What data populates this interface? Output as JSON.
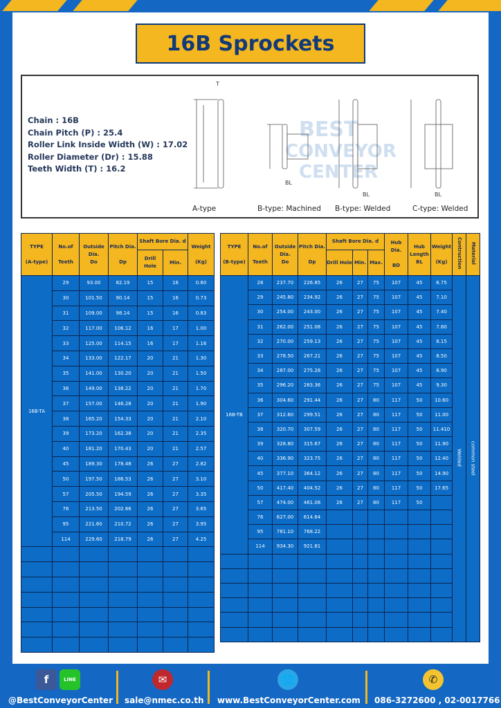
{
  "title": "16B Sprockets",
  "specs": [
    "Chain  :  16B",
    "Chain Pitch (P)  :  25.4",
    "Roller Link Inside Width (W)  :  17.02",
    "Roller Diameter (Dr)  : 15.88",
    "Teeth Width (T)  :  16.2"
  ],
  "diagram_captions": [
    "A-type",
    "B-type: Machined",
    "B-type: Welded",
    "C-type: Welded"
  ],
  "watermark": "BEST CONVEYOR CENTER",
  "colors": {
    "brand_blue": "#1467c2",
    "accent_yellow": "#f4b71f",
    "cell_blue": "#0c6cc6"
  },
  "table_a": {
    "headers": {
      "type": "TYPE",
      "type_sub": "(A-type)",
      "teeth": "No.of",
      "teeth_sub": "Teeth",
      "od": "Outside",
      "od_sub": "Dia.",
      "od_sub2": "Do",
      "pd": "Pitch Dia.",
      "pd_sub": "Dp",
      "bore": "Shaft Bore Dia. d",
      "drill": "Drill Hole",
      "min": "Min.",
      "weight": "Weight",
      "weight_sub": "(Kg)"
    },
    "type_value": "16B-TA",
    "rows": [
      [
        "29",
        "93.00",
        "82.19",
        "15",
        "16",
        "0.60"
      ],
      [
        "30",
        "101.50",
        "90.14",
        "15",
        "16",
        "0.73"
      ],
      [
        "31",
        "109.00",
        "98.14",
        "15",
        "16",
        "0.83"
      ],
      [
        "32",
        "117.00",
        "106.12",
        "16",
        "17",
        "1.00"
      ],
      [
        "33",
        "125.00",
        "114.15",
        "16",
        "17",
        "1.16"
      ],
      [
        "34",
        "133.00",
        "122.17",
        "20",
        "21",
        "1.30"
      ],
      [
        "35",
        "141.00",
        "130.20",
        "20",
        "21",
        "1.50"
      ],
      [
        "36",
        "149.00",
        "138.22",
        "20",
        "21",
        "1.70"
      ],
      [
        "37",
        "157.00",
        "146.28",
        "20",
        "21",
        "1.90"
      ],
      [
        "38",
        "165.20",
        "154.33",
        "20",
        "21",
        "2.10"
      ],
      [
        "39",
        "173.20",
        "162.38",
        "20",
        "21",
        "2.35"
      ],
      [
        "40",
        "181.20",
        "170.43",
        "20",
        "21",
        "2.57"
      ],
      [
        "45",
        "189.30",
        "178.48",
        "26",
        "27",
        "2.82"
      ],
      [
        "50",
        "197.50",
        "186.53",
        "26",
        "27",
        "3.10"
      ],
      [
        "57",
        "205.50",
        "194.59",
        "26",
        "27",
        "3.35"
      ],
      [
        "76",
        "213.50",
        "202.66",
        "26",
        "27",
        "3.65"
      ],
      [
        "95",
        "221.60",
        "210.72",
        "26",
        "27",
        "3.95"
      ],
      [
        "114",
        "229.60",
        "218.79",
        "26",
        "27",
        "4.25"
      ]
    ]
  },
  "table_b": {
    "headers": {
      "type": "TYPE",
      "type_sub": "(B-type)",
      "teeth": "No.of",
      "teeth_sub": "Teeth",
      "od": "Outside",
      "od_sub": "Dia.",
      "od_sub2": "Do",
      "pd": "Pitch Dia.",
      "pd_sub": "Dp",
      "bore": "Shaft Bore Dia. d",
      "drill": "Drill Hole",
      "min": "Min.",
      "max": "Max.",
      "hub": "Hub Dia.",
      "hub_sub": "BD",
      "hl": "Hub",
      "hl_sub": "Length",
      "hl_sub2": "BL",
      "weight": "Weight",
      "weight_sub": "(Kg)",
      "construction": "Contruction",
      "material": "Material"
    },
    "type_value": "16B-TB",
    "construction_value": "Welded",
    "material_value": "common steel",
    "rows": [
      [
        "28",
        "237.70",
        "226.85",
        "26",
        "27",
        "75",
        "107",
        "45",
        "6.75"
      ],
      [
        "29",
        "245.80",
        "234.92",
        "26",
        "27",
        "75",
        "107",
        "45",
        "7.10"
      ],
      [
        "30",
        "254.00",
        "243.00",
        "26",
        "27",
        "75",
        "107",
        "45",
        "7.40"
      ],
      [
        "31",
        "262.00",
        "251.08",
        "26",
        "27",
        "75",
        "107",
        "45",
        "7.80"
      ],
      [
        "32",
        "270.00",
        "259.13",
        "26",
        "27",
        "75",
        "107",
        "45",
        "8.15"
      ],
      [
        "33",
        "278.50",
        "267.21",
        "26",
        "27",
        "75",
        "107",
        "45",
        "8.50"
      ],
      [
        "34",
        "287.00",
        "275.28",
        "26",
        "27",
        "75",
        "107",
        "45",
        "8.90"
      ],
      [
        "35",
        "296.20",
        "283.36",
        "26",
        "27",
        "75",
        "107",
        "45",
        "9.30"
      ],
      [
        "36",
        "304.60",
        "291.44",
        "26",
        "27",
        "80",
        "117",
        "50",
        "10.60"
      ],
      [
        "37",
        "312.60",
        "299.51",
        "26",
        "27",
        "80",
        "117",
        "50",
        "11.00"
      ],
      [
        "38",
        "320.70",
        "307.59",
        "26",
        "27",
        "80",
        "117",
        "50",
        "11.410"
      ],
      [
        "39",
        "328.80",
        "315.67",
        "26",
        "27",
        "80",
        "117",
        "50",
        "11.90"
      ],
      [
        "40",
        "336.90",
        "323.75",
        "26",
        "27",
        "80",
        "117",
        "50",
        "12.40"
      ],
      [
        "45",
        "377.10",
        "364.12",
        "26",
        "27",
        "80",
        "117",
        "50",
        "14.90"
      ],
      [
        "50",
        "417.40",
        "404.52",
        "26",
        "27",
        "80",
        "117",
        "50",
        "17.65"
      ],
      [
        "57",
        "474.00",
        "461.08",
        "26",
        "27",
        "80",
        "117",
        "50",
        ""
      ],
      [
        "76",
        "627.00",
        "614.64",
        "",
        "",
        "",
        "",
        "",
        ""
      ],
      [
        "95",
        "781.10",
        "768.22",
        "",
        "",
        "",
        "",
        "",
        ""
      ],
      [
        "114",
        "934.30",
        "921.81",
        "",
        "",
        "",
        "",
        "",
        ""
      ]
    ]
  },
  "footer": {
    "social": "@BestConveyorCenter",
    "email": "sale@nmec.co.th",
    "website": "www.BestConveyorCenter.com",
    "phone": "086-3272600 , 02-0017766",
    "line_label": "LINE"
  }
}
